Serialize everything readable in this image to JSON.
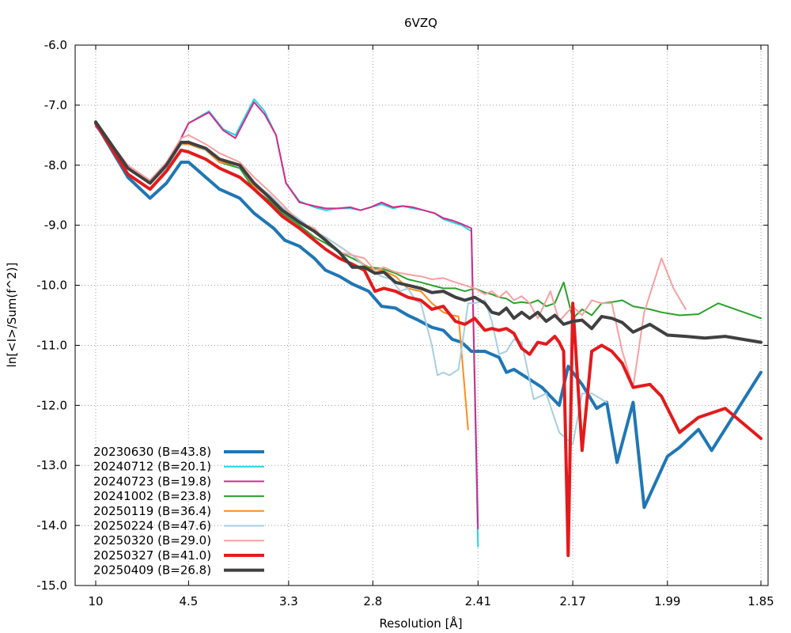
{
  "chart_data": {
    "type": "line",
    "title": "6VZQ",
    "xlabel": "Resolution [Å]",
    "ylabel": "ln[<I>/Sum(f^2)]",
    "x_scale": "reciprocal-square",
    "x_ticks": [
      {
        "label": "10",
        "value": 10
      },
      {
        "label": "4.5",
        "value": 4.5
      },
      {
        "label": "3.3",
        "value": 3.3
      },
      {
        "label": "2.8",
        "value": 2.8
      },
      {
        "label": "2.41",
        "value": 2.41
      },
      {
        "label": "2.17",
        "value": 2.17
      },
      {
        "label": "1.99",
        "value": 1.99
      },
      {
        "label": "1.85",
        "value": 1.85
      }
    ],
    "ylim": [
      -15.0,
      -6.0
    ],
    "y_ticks": [
      "-6.0",
      "-7.0",
      "-8.0",
      "-9.0",
      "-10.0",
      "-11.0",
      "-12.0",
      "-13.0",
      "-14.0",
      "-15.0"
    ],
    "grid": true,
    "legend_position": "bottom-left",
    "series": [
      {
        "name": "20230630 (B=43.8)",
        "color": "#1f77b4",
        "width": 4,
        "x": [
          10.0,
          6.5,
          5.5,
          5.0,
          4.65,
          4.5,
          4.2,
          4.0,
          3.75,
          3.6,
          3.42,
          3.33,
          3.22,
          3.12,
          3.05,
          2.97,
          2.9,
          2.82,
          2.76,
          2.7,
          2.65,
          2.61,
          2.56,
          2.52,
          2.49,
          2.46,
          2.43,
          2.39,
          2.37,
          2.35,
          2.33,
          2.31,
          2.24,
          2.2,
          2.18,
          2.16,
          2.15,
          2.12,
          2.1,
          2.08,
          2.05,
          2.03,
          1.99,
          1.97,
          1.94,
          1.92,
          1.85
        ],
        "y": [
          -7.3,
          -8.2,
          -8.55,
          -8.3,
          -7.95,
          -7.95,
          -8.2,
          -8.4,
          -8.55,
          -8.8,
          -9.05,
          -9.25,
          -9.35,
          -9.55,
          -9.75,
          -9.85,
          -9.98,
          -10.1,
          -10.35,
          -10.38,
          -10.5,
          -10.58,
          -10.7,
          -10.75,
          -10.9,
          -10.95,
          -11.1,
          -11.1,
          -11.15,
          -11.2,
          -11.45,
          -11.4,
          -11.7,
          -12.0,
          -11.35,
          -11.55,
          -11.65,
          -12.05,
          -11.95,
          -12.95,
          -11.95,
          -13.7,
          -12.85,
          -12.7,
          -12.4,
          -12.75,
          -11.45
        ]
      },
      {
        "name": "20240712 (B=20.1)",
        "color": "#22d3e6",
        "width": 2,
        "x": [
          10.0,
          6.5,
          5.5,
          5.0,
          4.65,
          4.5,
          4.15,
          3.95,
          3.8,
          3.6,
          3.5,
          3.4,
          3.32,
          3.22,
          3.12,
          3.05,
          2.98,
          2.91,
          2.86,
          2.81,
          2.76,
          2.71,
          2.67,
          2.63,
          2.59,
          2.55,
          2.52,
          2.49,
          2.46,
          2.43,
          2.41
        ],
        "y": [
          -7.35,
          -8.05,
          -8.3,
          -8.0,
          -7.55,
          -7.3,
          -7.1,
          -7.4,
          -7.5,
          -6.9,
          -7.1,
          -7.5,
          -8.3,
          -8.6,
          -8.7,
          -8.75,
          -8.72,
          -8.72,
          -8.75,
          -8.7,
          -8.65,
          -8.72,
          -8.68,
          -8.72,
          -8.75,
          -8.8,
          -8.9,
          -8.95,
          -9.0,
          -9.1,
          -14.35
        ]
      },
      {
        "name": "20240723 (B=19.8)",
        "color": "#d62a88",
        "width": 2,
        "x": [
          10.0,
          6.5,
          5.5,
          5.0,
          4.65,
          4.5,
          4.15,
          3.95,
          3.8,
          3.6,
          3.5,
          3.4,
          3.32,
          3.22,
          3.12,
          3.05,
          2.98,
          2.91,
          2.86,
          2.81,
          2.76,
          2.71,
          2.67,
          2.63,
          2.59,
          2.55,
          2.52,
          2.49,
          2.46,
          2.43,
          2.41
        ],
        "y": [
          -7.35,
          -8.05,
          -8.3,
          -8.0,
          -7.55,
          -7.3,
          -7.12,
          -7.42,
          -7.55,
          -6.95,
          -7.15,
          -7.5,
          -8.3,
          -8.62,
          -8.68,
          -8.72,
          -8.72,
          -8.7,
          -8.75,
          -8.7,
          -8.62,
          -8.7,
          -8.68,
          -8.7,
          -8.75,
          -8.8,
          -8.88,
          -8.92,
          -8.98,
          -9.05,
          -14.05
        ]
      },
      {
        "name": "20241002 (B=23.8)",
        "color": "#2ca02c",
        "width": 2,
        "x": [
          10.0,
          6.5,
          5.5,
          5.0,
          4.65,
          4.5,
          4.2,
          4.0,
          3.75,
          3.6,
          3.45,
          3.35,
          3.22,
          3.12,
          3.05,
          2.97,
          2.9,
          2.82,
          2.76,
          2.7,
          2.65,
          2.6,
          2.56,
          2.52,
          2.48,
          2.45,
          2.42,
          2.39,
          2.37,
          2.35,
          2.33,
          2.31,
          2.29,
          2.27,
          2.25,
          2.23,
          2.21,
          2.19,
          2.17,
          2.15,
          2.13,
          2.11,
          2.09,
          2.07,
          2.05,
          2.02,
          2.0,
          1.97,
          1.94,
          1.91,
          1.85
        ],
        "y": [
          -7.3,
          -8.05,
          -8.3,
          -8.0,
          -7.65,
          -7.65,
          -7.75,
          -7.95,
          -8.05,
          -8.4,
          -8.6,
          -8.8,
          -9.0,
          -9.2,
          -9.3,
          -9.45,
          -9.55,
          -9.7,
          -9.72,
          -9.8,
          -9.9,
          -9.95,
          -10.0,
          -10.05,
          -10.05,
          -10.1,
          -10.05,
          -10.12,
          -10.15,
          -10.2,
          -10.22,
          -10.3,
          -10.28,
          -10.3,
          -10.25,
          -10.35,
          -10.3,
          -9.95,
          -10.55,
          -10.4,
          -10.5,
          -10.3,
          -10.28,
          -10.25,
          -10.35,
          -10.4,
          -10.45,
          -10.5,
          -10.48,
          -10.3,
          -10.55
        ]
      },
      {
        "name": "20250119 (B=36.4)",
        "color": "#ff8c1a",
        "width": 2,
        "x": [
          10.0,
          6.5,
          5.5,
          5.0,
          4.65,
          4.5,
          4.2,
          4.0,
          3.75,
          3.6,
          3.45,
          3.35,
          3.22,
          3.12,
          3.05,
          2.97,
          2.9,
          2.82,
          2.76,
          2.7,
          2.65,
          2.6,
          2.56,
          2.52,
          2.49,
          2.47,
          2.44
        ],
        "y": [
          -7.3,
          -8.05,
          -8.3,
          -8.05,
          -7.65,
          -7.65,
          -7.75,
          -7.95,
          -8.0,
          -8.35,
          -8.55,
          -8.75,
          -8.95,
          -9.1,
          -9.2,
          -9.35,
          -9.5,
          -9.72,
          -9.75,
          -9.85,
          -10.05,
          -10.1,
          -10.3,
          -10.45,
          -10.5,
          -10.52,
          -12.4
        ]
      },
      {
        "name": "20250224 (B=47.6)",
        "color": "#a6cee3",
        "width": 2,
        "x": [
          10.0,
          6.5,
          5.5,
          5.0,
          4.65,
          4.5,
          4.2,
          4.0,
          3.75,
          3.6,
          3.45,
          3.35,
          3.22,
          3.12,
          3.05,
          2.97,
          2.9,
          2.82,
          2.76,
          2.72,
          2.68,
          2.65,
          2.62,
          2.6,
          2.56,
          2.54,
          2.52,
          2.5,
          2.47,
          2.44,
          2.42,
          2.39,
          2.37,
          2.35,
          2.33,
          2.31,
          2.29,
          2.26,
          2.23,
          2.2,
          2.17,
          2.15,
          2.13,
          2.1
        ],
        "y": [
          -7.3,
          -8.05,
          -8.3,
          -8.05,
          -7.65,
          -7.62,
          -7.75,
          -7.9,
          -8.0,
          -8.3,
          -8.5,
          -8.7,
          -8.9,
          -9.1,
          -9.2,
          -9.35,
          -9.5,
          -9.75,
          -9.85,
          -9.9,
          -10.1,
          -10.05,
          -10.25,
          -10.3,
          -11.0,
          -11.5,
          -11.45,
          -11.5,
          -11.4,
          -10.3,
          -10.3,
          -10.25,
          -10.6,
          -11.15,
          -11.1,
          -10.9,
          -10.95,
          -11.9,
          -11.8,
          -12.45,
          -12.65,
          -11.8,
          -11.8,
          -11.95
        ]
      },
      {
        "name": "20250320 (B=29.0)",
        "color": "#f7a0a0",
        "width": 2,
        "x": [
          10.0,
          6.5,
          5.5,
          5.0,
          4.65,
          4.5,
          4.2,
          4.0,
          3.75,
          3.6,
          3.45,
          3.35,
          3.22,
          3.12,
          3.05,
          2.97,
          2.9,
          2.84,
          2.79,
          2.75,
          2.7,
          2.65,
          2.6,
          2.56,
          2.52,
          2.48,
          2.45,
          2.42,
          2.39,
          2.37,
          2.35,
          2.33,
          2.31,
          2.29,
          2.27,
          2.25,
          2.22,
          2.2,
          2.17,
          2.15,
          2.13,
          2.11,
          2.09,
          2.07,
          2.05,
          2.03,
          2.0,
          1.98,
          1.96
        ],
        "y": [
          -7.3,
          -8.0,
          -8.25,
          -7.95,
          -7.55,
          -7.5,
          -7.65,
          -7.8,
          -7.95,
          -8.2,
          -8.45,
          -8.65,
          -8.95,
          -9.05,
          -9.25,
          -9.45,
          -9.5,
          -9.55,
          -9.75,
          -9.7,
          -9.78,
          -9.82,
          -9.85,
          -9.9,
          -9.88,
          -9.95,
          -10.0,
          -10.05,
          -10.15,
          -10.1,
          -10.2,
          -10.1,
          -10.25,
          -10.18,
          -10.3,
          -10.55,
          -10.1,
          -10.6,
          -10.35,
          -10.5,
          -10.25,
          -10.3,
          -10.3,
          -11.1,
          -11.7,
          -10.45,
          -9.55,
          -10.05,
          -10.4
        ]
      },
      {
        "name": "20250327 (B=41.0)",
        "color": "#e31a1c",
        "width": 4,
        "x": [
          10.0,
          6.5,
          5.5,
          5.0,
          4.65,
          4.5,
          4.2,
          4.0,
          3.75,
          3.6,
          3.45,
          3.35,
          3.22,
          3.12,
          3.05,
          2.97,
          2.9,
          2.84,
          2.79,
          2.75,
          2.7,
          2.65,
          2.6,
          2.56,
          2.52,
          2.48,
          2.45,
          2.42,
          2.39,
          2.37,
          2.35,
          2.33,
          2.31,
          2.29,
          2.27,
          2.25,
          2.23,
          2.21,
          2.2,
          2.19,
          2.18,
          2.17,
          2.15,
          2.13,
          2.11,
          2.09,
          2.07,
          2.05,
          2.02,
          2.0,
          1.97,
          1.94,
          1.9,
          1.85
        ],
        "y": [
          -7.3,
          -8.15,
          -8.4,
          -8.1,
          -7.75,
          -7.78,
          -7.9,
          -8.05,
          -8.2,
          -8.4,
          -8.65,
          -8.85,
          -9.05,
          -9.25,
          -9.4,
          -9.55,
          -9.65,
          -9.75,
          -10.1,
          -10.05,
          -10.1,
          -10.2,
          -10.25,
          -10.4,
          -10.35,
          -10.6,
          -10.65,
          -10.55,
          -10.75,
          -10.72,
          -10.75,
          -10.72,
          -10.8,
          -11.05,
          -11.15,
          -10.95,
          -10.98,
          -10.85,
          -10.95,
          -11.1,
          -14.5,
          -10.3,
          -12.75,
          -11.1,
          -11.0,
          -11.1,
          -11.3,
          -11.7,
          -11.65,
          -11.85,
          -12.45,
          -12.2,
          -12.05,
          -12.55
        ]
      },
      {
        "name": "20250409 (B=26.8)",
        "color": "#404040",
        "width": 4,
        "x": [
          10.0,
          6.5,
          5.5,
          5.0,
          4.65,
          4.5,
          4.2,
          4.0,
          3.75,
          3.6,
          3.45,
          3.35,
          3.22,
          3.12,
          3.05,
          2.97,
          2.9,
          2.84,
          2.79,
          2.75,
          2.7,
          2.65,
          2.6,
          2.56,
          2.52,
          2.48,
          2.45,
          2.42,
          2.39,
          2.37,
          2.35,
          2.33,
          2.31,
          2.29,
          2.27,
          2.25,
          2.23,
          2.21,
          2.19,
          2.17,
          2.15,
          2.13,
          2.11,
          2.09,
          2.07,
          2.05,
          2.02,
          1.99,
          1.96,
          1.93,
          1.9,
          1.85
        ],
        "y": [
          -7.28,
          -8.05,
          -8.3,
          -8.0,
          -7.62,
          -7.62,
          -7.72,
          -7.9,
          -8.0,
          -8.3,
          -8.55,
          -8.75,
          -8.95,
          -9.1,
          -9.25,
          -9.45,
          -9.7,
          -9.7,
          -9.8,
          -9.78,
          -9.95,
          -10.0,
          -10.05,
          -10.12,
          -10.1,
          -10.2,
          -10.25,
          -10.2,
          -10.3,
          -10.45,
          -10.48,
          -10.38,
          -10.55,
          -10.45,
          -10.55,
          -10.45,
          -10.6,
          -10.5,
          -10.65,
          -10.6,
          -10.58,
          -10.72,
          -10.52,
          -10.55,
          -10.62,
          -10.78,
          -10.65,
          -10.83,
          -10.85,
          -10.88,
          -10.85,
          -10.95
        ]
      }
    ]
  }
}
